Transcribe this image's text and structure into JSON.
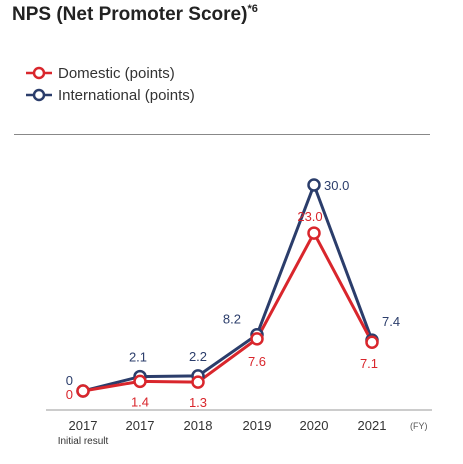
{
  "title": "NPS (Net Promoter Score)",
  "title_note": "*6",
  "colors": {
    "domestic": "#d9262c",
    "international": "#2b3d6b",
    "axis": "#999999",
    "text": "#333333"
  },
  "chart_data": {
    "type": "line",
    "title": "NPS (Net Promoter Score)*6",
    "categories": [
      "2017",
      "2017",
      "2018",
      "2019",
      "2020",
      "2021"
    ],
    "category_sublabels": [
      "Initial result",
      "",
      "",
      "",
      "",
      ""
    ],
    "x_unit": "(FY)",
    "ylim": [
      0,
      32
    ],
    "grid": false,
    "legend_position": "top-left",
    "series": [
      {
        "name": "Domestic (points)",
        "color": "#d9262c",
        "values": [
          0,
          1.4,
          1.3,
          7.6,
          23.0,
          7.1
        ],
        "labels": [
          "0",
          "1.4",
          "1.3",
          "7.6",
          "23.0",
          "7.1"
        ]
      },
      {
        "name": "International (points)",
        "color": "#2b3d6b",
        "values": [
          0,
          2.1,
          2.2,
          8.2,
          30.0,
          7.4
        ],
        "labels": [
          "0",
          "2.1",
          "2.2",
          "8.2",
          "30.0",
          "7.4"
        ]
      }
    ]
  }
}
